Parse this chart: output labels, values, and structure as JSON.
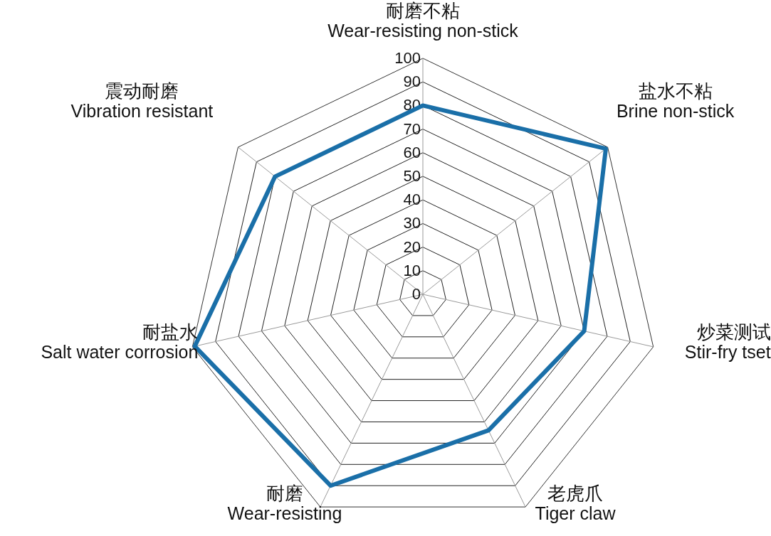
{
  "chart_data": {
    "type": "radar",
    "categories": [
      "耐磨不粘\nWear-resisting non-stick",
      "盐水不粘\nBrine non-stick",
      "炒菜测试\nStir-fry tset",
      "老虎爪\nTiger claw",
      "耐磨\nWear-resisting",
      "耐盐水\nSalt water corrosion",
      "震动耐磨\nVibration resistant"
    ],
    "series": [
      {
        "color": "#1a6fa8",
        "values": [
          80,
          99,
          70,
          64,
          90,
          99,
          80
        ]
      }
    ],
    "ylim": [
      0,
      100
    ],
    "yticks": [
      0,
      10,
      20,
      30,
      40,
      50,
      60,
      70,
      80,
      90,
      100
    ],
    "grid": true
  }
}
